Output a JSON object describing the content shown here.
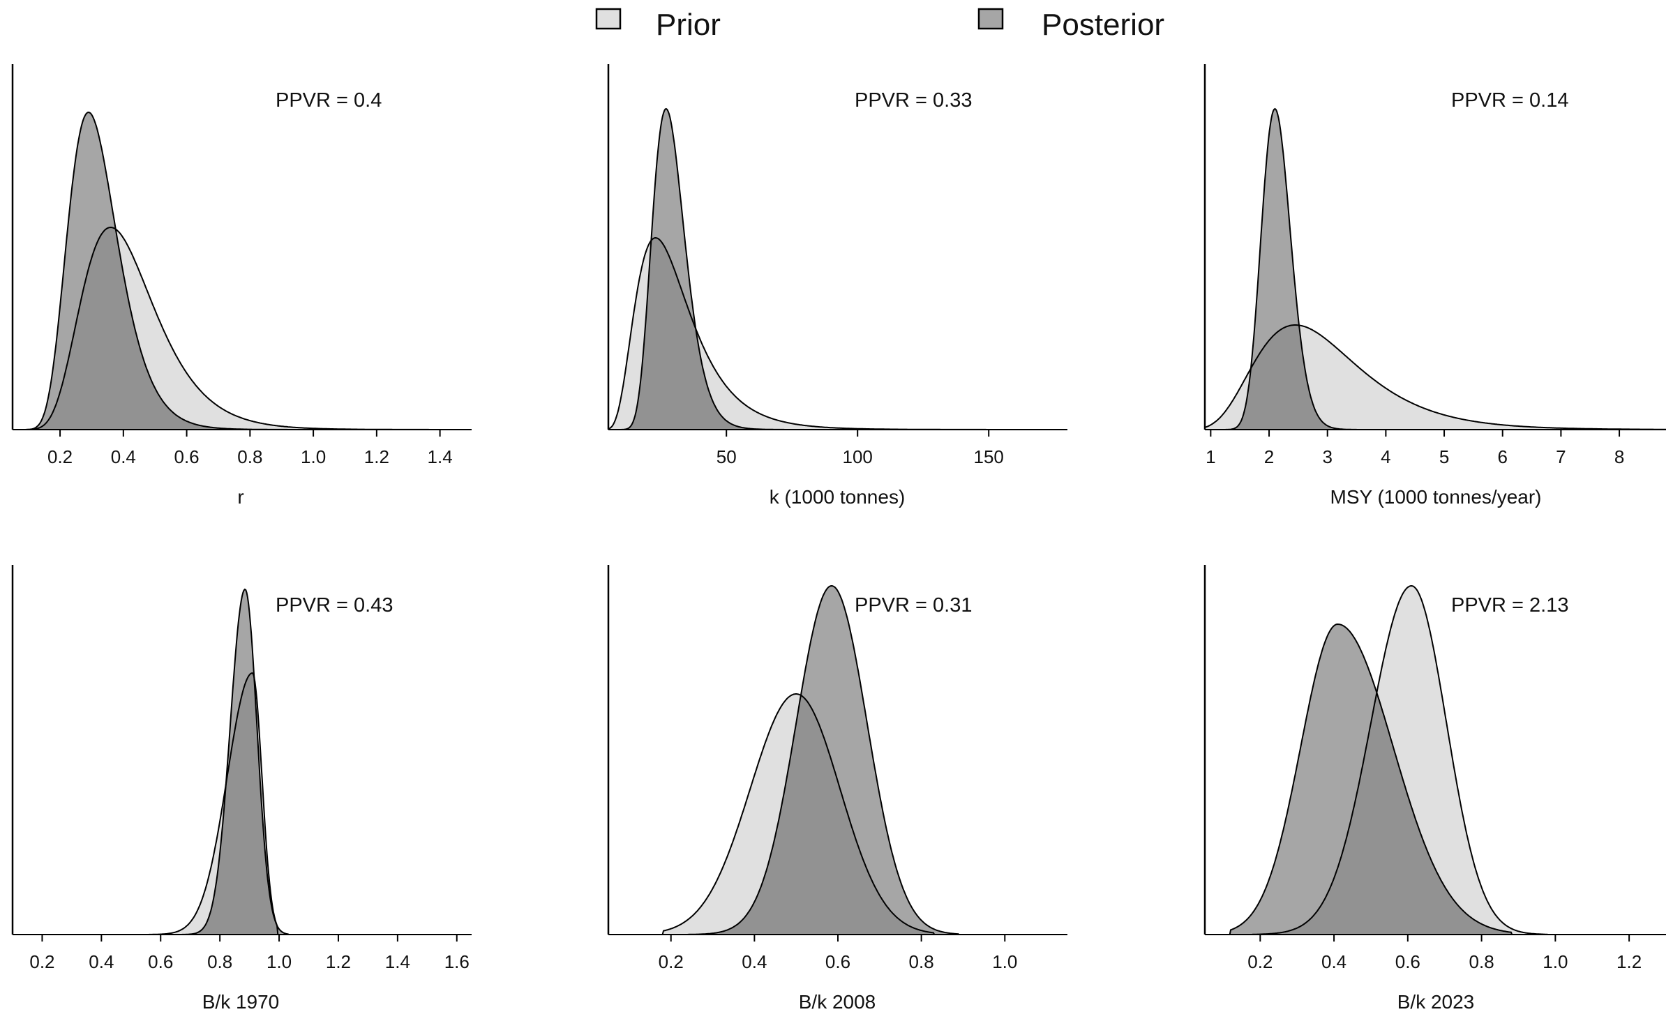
{
  "legend": {
    "prior_label": "Prior",
    "posterior_label": "Posterior",
    "prior_color": "#e0e0e0",
    "posterior_color": "#a6a6a6",
    "overlap_color": "#929292",
    "line_color": "#000000"
  },
  "chart_data": [
    {
      "type": "area",
      "xlabel": "r",
      "ppvr_label": "PPVR = 0.4",
      "xlim": [
        0.05,
        1.5
      ],
      "ticks": [
        0.2,
        0.4,
        0.6,
        0.8,
        1.0,
        1.2,
        1.4
      ],
      "tick_labels": [
        "0.2",
        "0.4",
        "0.6",
        "0.8",
        "1.0",
        "1.2",
        "1.4"
      ],
      "prior": {
        "dist": "lognormal",
        "peak": 0.36,
        "sigma": 0.32,
        "height": 0.58
      },
      "posterior": {
        "dist": "lognormal",
        "peak": 0.29,
        "sigma": 0.27,
        "height": 0.91
      }
    },
    {
      "type": "area",
      "xlabel": "k (1000 tonnes)",
      "ppvr_label": "PPVR = 0.33",
      "xlim": [
        5,
        180
      ],
      "ticks": [
        50,
        100,
        150
      ],
      "tick_labels": [
        "50",
        "100",
        "150"
      ],
      "prior": {
        "dist": "lognormal",
        "peak": 23,
        "sigma": 0.45,
        "height": 0.55
      },
      "posterior": {
        "dist": "lognormal",
        "peak": 27,
        "sigma": 0.23,
        "height": 0.92
      }
    },
    {
      "type": "area",
      "xlabel": "MSY (1000 tonnes/year)",
      "ppvr_label": "PPVR = 0.14",
      "xlim": [
        0.9,
        8.8
      ],
      "ticks": [
        1,
        2,
        3,
        4,
        5,
        6,
        7,
        8
      ],
      "tick_labels": [
        "1",
        "2",
        "3",
        "4",
        "5",
        "6",
        "7",
        "8"
      ],
      "prior": {
        "dist": "lognormal",
        "peak": 2.45,
        "sigma": 0.36,
        "height": 0.3
      },
      "posterior": {
        "dist": "lognormal",
        "peak": 2.1,
        "sigma": 0.12,
        "height": 0.92
      }
    },
    {
      "type": "area",
      "xlabel": "B/k 1970",
      "ppvr_label": "PPVR = 0.43",
      "xlim": [
        0.1,
        1.65
      ],
      "ticks": [
        0.2,
        0.4,
        0.6,
        0.8,
        1.0,
        1.2,
        1.4,
        1.6
      ],
      "tick_labels": [
        "0.2",
        "0.4",
        "0.6",
        "0.8",
        "1.0",
        "1.2",
        "1.4",
        "1.6"
      ],
      "prior": {
        "dist": "skew",
        "peak": 0.91,
        "left_sd": 0.085,
        "right_sd": 0.032,
        "xmin": 0.56,
        "xmax": 0.995,
        "height": 0.75
      },
      "posterior": {
        "dist": "skew",
        "peak": 0.885,
        "left_sd": 0.05,
        "right_sd": 0.04,
        "xmin": 0.62,
        "xmax": 1.03,
        "height": 0.99
      }
    },
    {
      "type": "area",
      "xlabel": "B/k 2008",
      "ppvr_label": "PPVR = 0.31",
      "xlim": [
        0.05,
        1.15
      ],
      "ticks": [
        0.2,
        0.4,
        0.6,
        0.8,
        1.0
      ],
      "tick_labels": [
        "0.2",
        "0.4",
        "0.6",
        "0.8",
        "1.0"
      ],
      "prior": {
        "dist": "skew",
        "peak": 0.5,
        "left_sd": 0.11,
        "right_sd": 0.105,
        "xmin": 0.18,
        "xmax": 0.83,
        "height": 0.69
      },
      "posterior": {
        "dist": "skew",
        "peak": 0.585,
        "left_sd": 0.085,
        "right_sd": 0.085,
        "xmin": 0.24,
        "xmax": 0.89,
        "height": 1.0
      }
    },
    {
      "type": "area",
      "xlabel": "B/k 2023",
      "ppvr_label": "PPVR = 2.13",
      "xlim": [
        0.05,
        1.3
      ],
      "ticks": [
        0.2,
        0.4,
        0.6,
        0.8,
        1.0,
        1.2
      ],
      "tick_labels": [
        "0.2",
        "0.4",
        "0.6",
        "0.8",
        "1.0",
        "1.2"
      ],
      "prior": {
        "dist": "skew",
        "peak": 0.61,
        "left_sd": 0.11,
        "right_sd": 0.095,
        "xmin": 0.18,
        "xmax": 0.98,
        "height": 1.0
      },
      "posterior": {
        "dist": "skew",
        "peak": 0.41,
        "left_sd": 0.1,
        "right_sd": 0.15,
        "xmin": 0.12,
        "xmax": 0.88,
        "height": 0.89
      }
    }
  ]
}
